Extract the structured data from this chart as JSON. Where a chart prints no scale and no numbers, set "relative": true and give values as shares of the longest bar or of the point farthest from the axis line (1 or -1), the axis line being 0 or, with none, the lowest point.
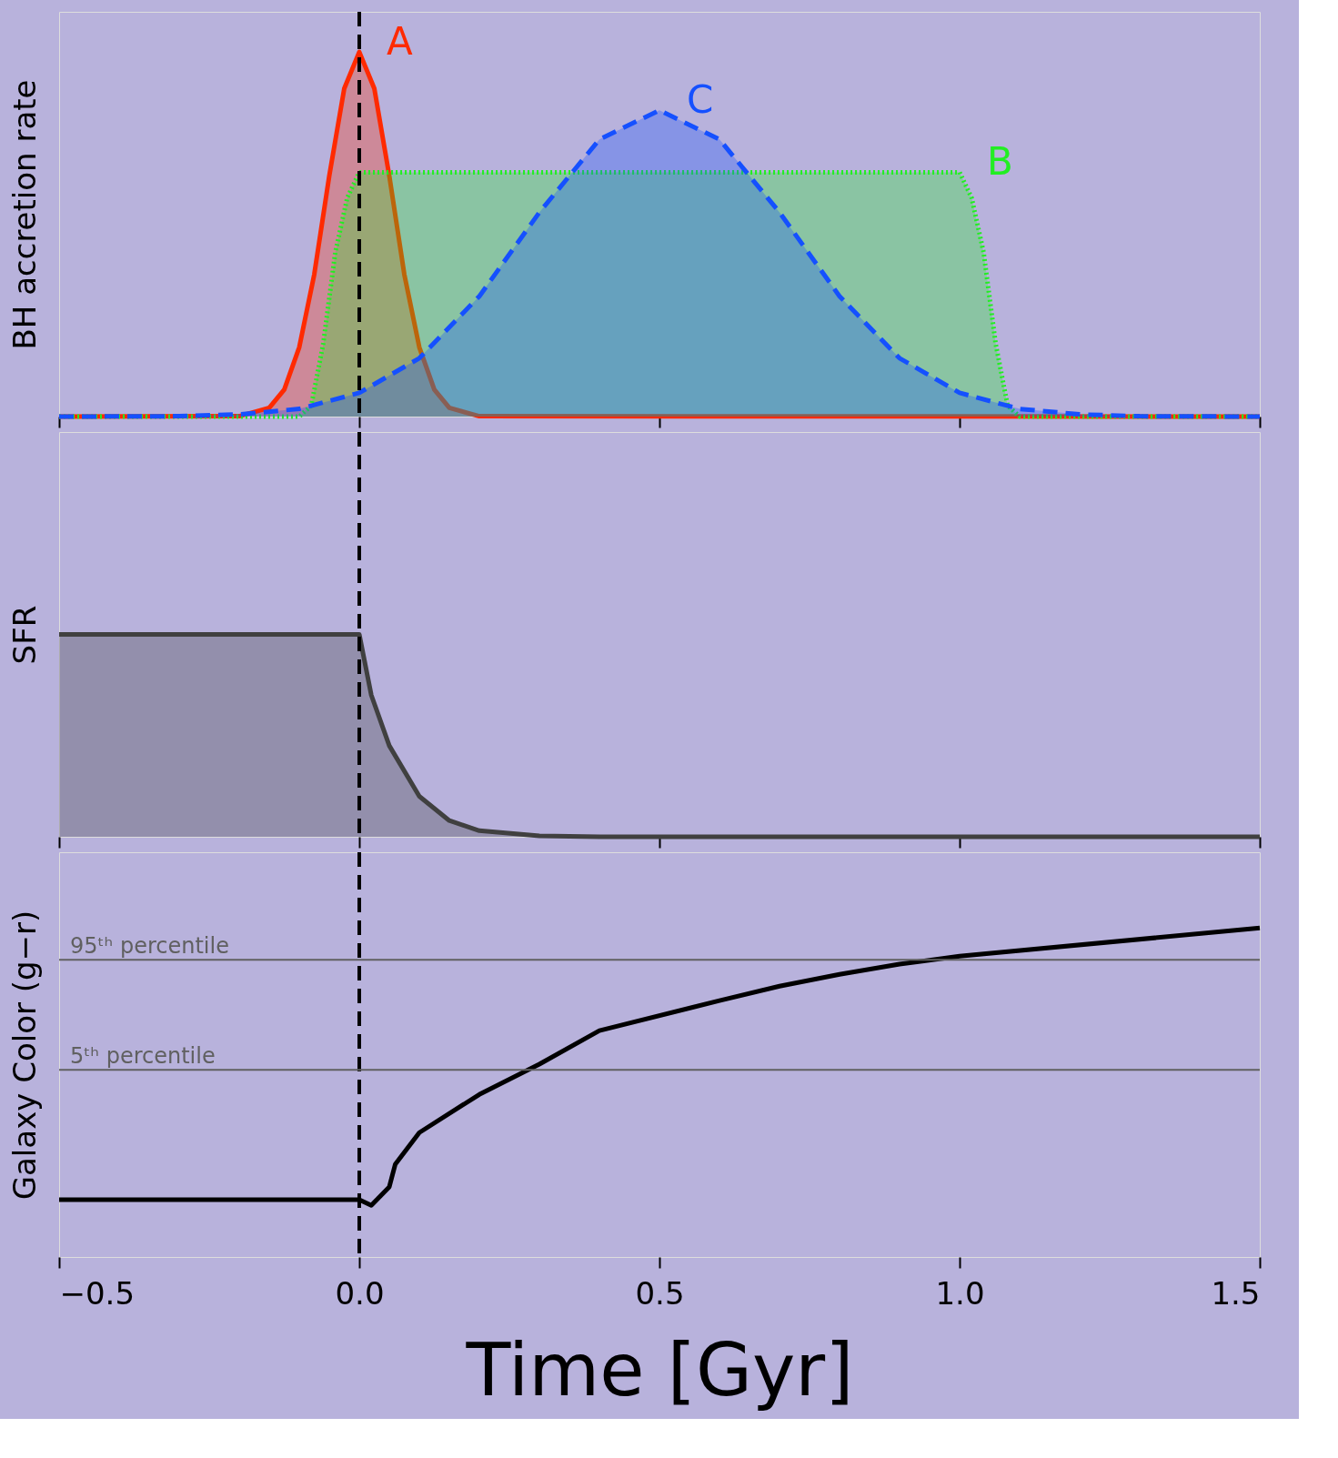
{
  "chart_data": [
    {
      "type": "area",
      "relative": true,
      "ylabel": "BH accretion rate",
      "xlim": [
        -0.5,
        1.5
      ],
      "xticks": [
        {
          "value": -0.5,
          "label": null
        },
        {
          "value": 0,
          "label": null
        },
        {
          "value": 0.5,
          "label": null
        },
        {
          "value": 1.0,
          "label": null
        },
        {
          "value": 1.5,
          "label": null
        }
      ],
      "tick_labels": false,
      "grid": false,
      "series": [
        {
          "name": "A",
          "color": "#ff2a00",
          "line_style": "solid",
          "x": [
            -0.5,
            -0.2,
            -0.15,
            -0.125,
            -0.1,
            -0.075,
            -0.05,
            -0.025,
            0,
            0.025,
            0.05,
            0.075,
            0.1,
            0.125,
            0.15,
            0.2,
            1.5
          ],
          "values": [
            0,
            0.001,
            0.024,
            0.074,
            0.19,
            0.39,
            0.66,
            0.9,
            1,
            0.9,
            0.66,
            0.39,
            0.19,
            0.074,
            0.024,
            0.001,
            0
          ]
        },
        {
          "name": "B",
          "color": "#22ee22",
          "line_style": "dotted",
          "x": [
            -0.5,
            -0.1,
            -0.08,
            -0.06,
            -0.04,
            -0.02,
            0,
            1.0,
            1.02,
            1.04,
            1.06,
            1.08,
            1.1,
            1.5
          ],
          "values": [
            0,
            0,
            0.03,
            0.2,
            0.45,
            0.6,
            0.67,
            0.67,
            0.6,
            0.45,
            0.2,
            0.03,
            0,
            0
          ]
        },
        {
          "name": "C",
          "color": "#1550ff",
          "line_style": "dashed",
          "x": [
            -0.5,
            -0.3,
            -0.2,
            -0.1,
            0,
            0.1,
            0.2,
            0.3,
            0.4,
            0.5,
            0.6,
            0.7,
            0.8,
            0.9,
            1.0,
            1.1,
            1.2,
            1.3,
            1.5
          ],
          "values": [
            0,
            0.001,
            0.006,
            0.021,
            0.065,
            0.16,
            0.33,
            0.56,
            0.76,
            0.84,
            0.76,
            0.56,
            0.33,
            0.16,
            0.065,
            0.021,
            0.006,
            0.001,
            0
          ]
        }
      ],
      "ref_lines": [
        {
          "axis": "x",
          "value": 0,
          "color": "#000000",
          "line_style": "dashed"
        }
      ]
    },
    {
      "type": "area",
      "relative": true,
      "ylabel": "SFR",
      "xlim": [
        -0.5,
        1.5
      ],
      "xticks": [
        {
          "value": -0.5,
          "label": null
        },
        {
          "value": 0,
          "label": null
        },
        {
          "value": 0.5,
          "label": null
        },
        {
          "value": 1.0,
          "label": null
        },
        {
          "value": 1.5,
          "label": null
        }
      ],
      "tick_labels": false,
      "grid": false,
      "series": [
        {
          "color": "#404040",
          "line_style": "solid",
          "x": [
            -0.5,
            0,
            0.02,
            0.05,
            0.1,
            0.15,
            0.2,
            0.3,
            0.4,
            1.5
          ],
          "values": [
            1,
            1,
            0.7,
            0.45,
            0.2,
            0.08,
            0.03,
            0.005,
            0,
            0
          ]
        }
      ],
      "ref_lines": [
        {
          "axis": "x",
          "value": 0,
          "color": "#000000",
          "line_style": "dashed"
        }
      ]
    },
    {
      "type": "line",
      "relative": true,
      "ylabel": "Galaxy Color (g−r)",
      "xlabel": "Time [Gyr]",
      "xlim": [
        -0.5,
        1.5
      ],
      "xticks": [
        {
          "value": -0.5,
          "label": "−0.5"
        },
        {
          "value": 0,
          "label": "0.0"
        },
        {
          "value": 0.5,
          "label": "0.5"
        },
        {
          "value": 1.0,
          "label": "1.0"
        },
        {
          "value": 1.5,
          "label": "1.5"
        }
      ],
      "tick_labels": "x",
      "grid": false,
      "series": [
        {
          "color": "#000000",
          "line_style": "solid",
          "x": [
            -0.5,
            0,
            0.02,
            0.05,
            0.06,
            0.1,
            0.2,
            0.3,
            0.4,
            0.6,
            0.7,
            0.8,
            0.9,
            1.0,
            1.5
          ],
          "values": [
            0.174,
            0.174,
            0.157,
            0.213,
            0.282,
            0.378,
            0.494,
            0.586,
            0.688,
            0.779,
            0.823,
            0.859,
            0.89,
            0.914,
            1.0
          ]
        }
      ],
      "ref_lines": [
        {
          "axis": "x",
          "value": 0,
          "color": "#000000",
          "line_style": "dashed"
        },
        {
          "axis": "y",
          "value": 0.903,
          "label": "95ᵗʰ percentile",
          "color": "#606060",
          "line_style": "solid"
        },
        {
          "axis": "y",
          "value": 0.569,
          "label": "5ᵗʰ percentile",
          "color": "#606060",
          "line_style": "solid"
        }
      ]
    }
  ]
}
